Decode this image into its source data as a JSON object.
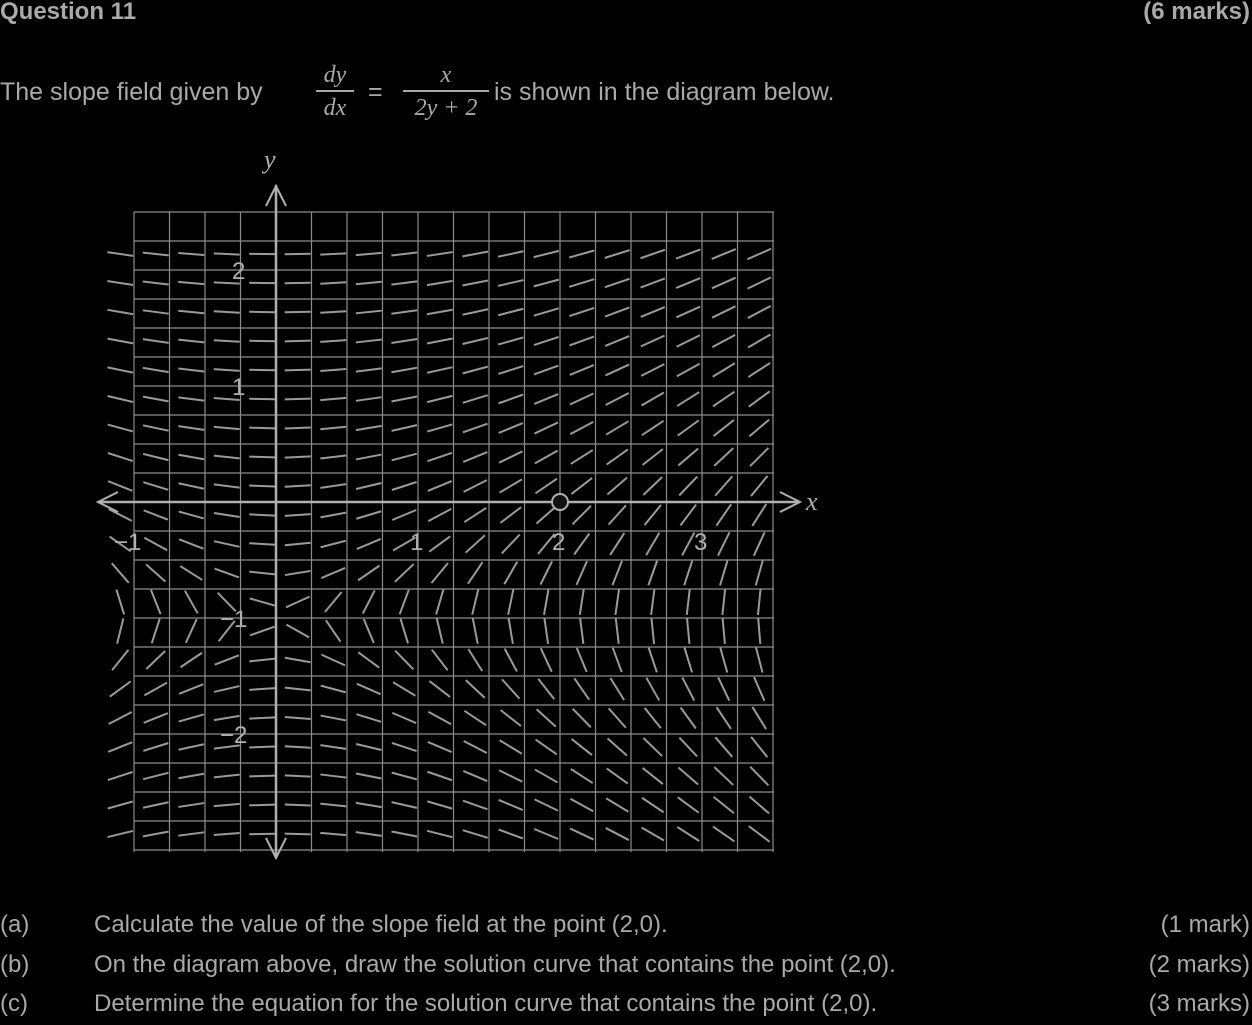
{
  "header": {
    "title": "Question 11",
    "marks": "(6 marks)"
  },
  "intro": {
    "before": "The slope field given by",
    "after": "is shown in the diagram below.",
    "lhs_num": "dy",
    "lhs_den": "dx",
    "equals": "=",
    "rhs_num": "x",
    "rhs_den": "2y + 2"
  },
  "chart_data": {
    "type": "slope-field",
    "equation": "dy/dx = x / (2y + 2)",
    "xlabel": "x",
    "ylabel": "y",
    "x_ticks": [
      "−1",
      "1",
      "2",
      "3"
    ],
    "y_ticks": [
      "2",
      "1",
      "−1",
      "−2"
    ],
    "xlim": [
      -1,
      3.5
    ],
    "ylim": [
      -3,
      2.5
    ],
    "marked_point": [
      2,
      0
    ],
    "grid": true
  },
  "parts": [
    {
      "label": "(a)",
      "text": "Calculate the value of the slope field at the point (2,0).",
      "marks": "(1 mark)"
    },
    {
      "label": "(b)",
      "text": "On the diagram above, draw the solution curve that contains the point (2,0).",
      "marks": "(2 marks)"
    },
    {
      "label": "(c)",
      "text": "Determine the equation for the solution curve that contains the point (2,0).",
      "marks": "(3 marks)"
    }
  ]
}
